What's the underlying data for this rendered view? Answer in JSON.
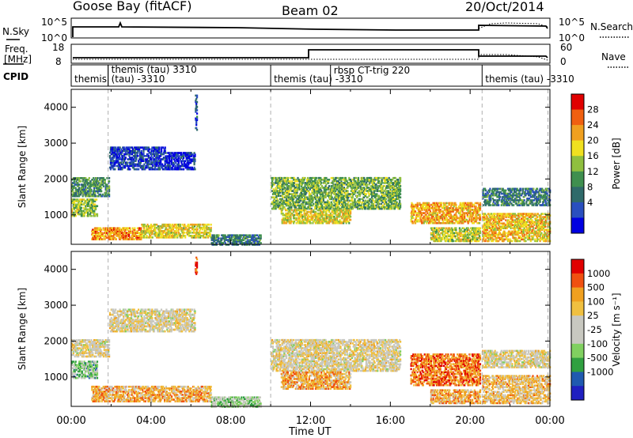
{
  "header": {
    "station": "Goose Bay (fitACF)",
    "beam": "Beam 02",
    "date": "20/Oct/2014"
  },
  "labels": {
    "nsky": "N.Sky",
    "nsearch": "N.Search",
    "freq_line1": "Freq.",
    "freq_line2": "[MHz]",
    "nave": "Nave",
    "cpid": "CPID",
    "noise_ticks": [
      "10^5",
      "10^0"
    ],
    "noise_ticks_right": [
      "10^5",
      "10^0"
    ],
    "freq_ticks": [
      "18",
      "8"
    ],
    "nave_ticks": [
      "60",
      "0"
    ]
  },
  "cpid_segments": [
    {
      "label": "themis",
      "start": 0.0,
      "end": 1.85
    },
    {
      "label": "(tau) -3310",
      "start": 1.85,
      "end": 10.0
    },
    {
      "label": "themis (tau) 3310",
      "start": 1.85,
      "end": 10.0
    },
    {
      "label": "themis (tau) -3310",
      "start": 10.0,
      "end": 20.6
    },
    {
      "label": "rbsp CT-trig 220",
      "start": 13.0,
      "end": 20.6
    },
    {
      "label": "themis (tau) -3310",
      "start": 20.6,
      "end": 23.9
    }
  ],
  "chart_data": [
    {
      "type": "heatmap",
      "name": "power",
      "ylabel": "Slant Range [km]",
      "xlabel": "Time UT",
      "xlim": [
        0,
        24
      ],
      "ylim": [
        180,
        4500
      ],
      "yticks": [
        1000,
        2000,
        3000,
        4000
      ],
      "xtick_labels": [
        "00:00",
        "04:00",
        "08:00",
        "12:00",
        "16:00",
        "20:00",
        "00:00"
      ],
      "colorbar": {
        "label": "Power [dB]",
        "ticks": [
          "28",
          "24",
          "20",
          "16",
          "12",
          "8",
          "4"
        ],
        "colors": [
          "#0000e0",
          "#2a4fbf",
          "#2f6a6a",
          "#3f8f4f",
          "#8fbf3f",
          "#f0e020",
          "#f0a020",
          "#f06010",
          "#e00000"
        ]
      },
      "regions": [
        {
          "t0": 0.0,
          "t1": 1.9,
          "r0": 1550,
          "r1": 2100,
          "level": 0.35
        },
        {
          "t0": 1.9,
          "t1": 4.7,
          "r0": 2300,
          "r1": 2950,
          "level": 0.15
        },
        {
          "t0": 4.7,
          "t1": 6.2,
          "r0": 2300,
          "r1": 2800,
          "level": 0.1
        },
        {
          "t0": 0.0,
          "t1": 1.3,
          "r0": 1000,
          "r1": 1500,
          "level": 0.5
        },
        {
          "t0": 1.0,
          "t1": 3.5,
          "r0": 350,
          "r1": 700,
          "level": 0.75
        },
        {
          "t0": 3.5,
          "t1": 7.0,
          "r0": 400,
          "r1": 800,
          "level": 0.6
        },
        {
          "t0": 7.0,
          "t1": 9.5,
          "r0": 200,
          "r1": 500,
          "level": 0.3
        },
        {
          "t0": 10.0,
          "t1": 16.5,
          "r0": 1200,
          "r1": 2100,
          "level": 0.45
        },
        {
          "t0": 10.5,
          "t1": 14.0,
          "r0": 800,
          "r1": 1200,
          "level": 0.6
        },
        {
          "t0": 17.0,
          "t1": 20.5,
          "r0": 800,
          "r1": 1400,
          "level": 0.7
        },
        {
          "t0": 18.0,
          "t1": 20.5,
          "r0": 300,
          "r1": 700,
          "level": 0.55
        },
        {
          "t0": 20.6,
          "t1": 24.0,
          "r0": 1300,
          "r1": 1800,
          "level": 0.3
        },
        {
          "t0": 20.6,
          "t1": 24.0,
          "r0": 300,
          "r1": 1100,
          "level": 0.65
        },
        {
          "t0": 6.2,
          "t1": 6.3,
          "r0": 3400,
          "r1": 4400,
          "level": 0.2
        }
      ]
    },
    {
      "type": "heatmap",
      "name": "velocity",
      "ylabel": "Slant Range [km]",
      "xlabel": "Time UT",
      "xlim": [
        0,
        24
      ],
      "ylim": [
        180,
        4500
      ],
      "yticks": [
        1000,
        2000,
        3000,
        4000
      ],
      "xtick_labels": [
        "00:00",
        "04:00",
        "08:00",
        "12:00",
        "16:00",
        "20:00",
        "00:00"
      ],
      "colorbar": {
        "label": "Velocity [m s⁻¹]",
        "ticks": [
          "1000",
          "500",
          "100",
          "25",
          "-25",
          "-100",
          "-500",
          "-1000"
        ],
        "colors": [
          "#e00000",
          "#f05010",
          "#f0a020",
          "#f0c040",
          "#c8c8c0",
          "#c8c8c0",
          "#80d060",
          "#30a040",
          "#205ab0",
          "#2020c0"
        ]
      },
      "regions": [
        {
          "t0": 0.0,
          "t1": 1.9,
          "r0": 1600,
          "r1": 2100,
          "level": 0.45
        },
        {
          "t0": 1.9,
          "t1": 6.2,
          "r0": 2300,
          "r1": 2950,
          "level": 0.45
        },
        {
          "t0": 0.0,
          "t1": 1.3,
          "r0": 1000,
          "r1": 1500,
          "level": 0.65
        },
        {
          "t0": 1.0,
          "t1": 7.0,
          "r0": 350,
          "r1": 800,
          "level": 0.3
        },
        {
          "t0": 7.0,
          "t1": 9.5,
          "r0": 200,
          "r1": 500,
          "level": 0.6
        },
        {
          "t0": 10.0,
          "t1": 16.5,
          "r0": 1200,
          "r1": 2100,
          "level": 0.45
        },
        {
          "t0": 10.5,
          "t1": 14.0,
          "r0": 700,
          "r1": 1200,
          "level": 0.3
        },
        {
          "t0": 17.0,
          "t1": 20.5,
          "r0": 800,
          "r1": 1700,
          "level": 0.2
        },
        {
          "t0": 18.0,
          "t1": 20.5,
          "r0": 300,
          "r1": 700,
          "level": 0.3
        },
        {
          "t0": 20.6,
          "t1": 24.0,
          "r0": 1300,
          "r1": 1800,
          "level": 0.45
        },
        {
          "t0": 20.6,
          "t1": 24.0,
          "r0": 300,
          "r1": 1100,
          "level": 0.35
        },
        {
          "t0": 6.2,
          "t1": 6.3,
          "r0": 3900,
          "r1": 4400,
          "level": 0.05
        }
      ]
    }
  ]
}
